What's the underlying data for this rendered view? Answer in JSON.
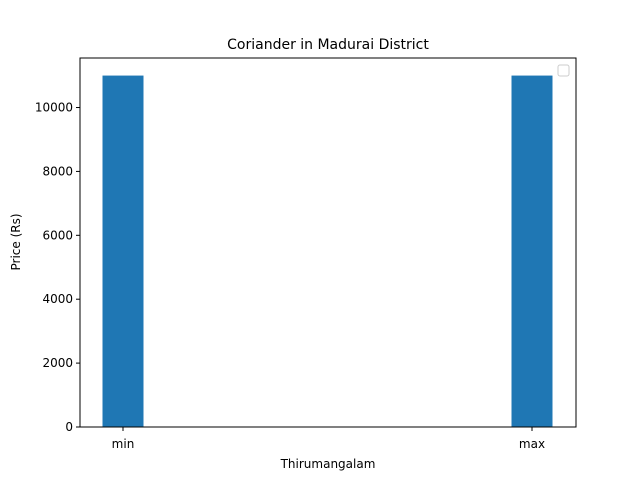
{
  "chart_data": {
    "type": "bar",
    "title": "Coriander in Madurai District",
    "xlabel": "Thirumangalam",
    "ylabel": "Price (Rs)",
    "categories": [
      "min",
      "max"
    ],
    "values": [
      11000,
      11000
    ],
    "ylim": [
      0,
      11550
    ],
    "yticks": [
      0,
      2000,
      4000,
      6000,
      8000,
      10000
    ],
    "grid": false,
    "legend": "top-right",
    "bar_color": "#1f77b4"
  }
}
